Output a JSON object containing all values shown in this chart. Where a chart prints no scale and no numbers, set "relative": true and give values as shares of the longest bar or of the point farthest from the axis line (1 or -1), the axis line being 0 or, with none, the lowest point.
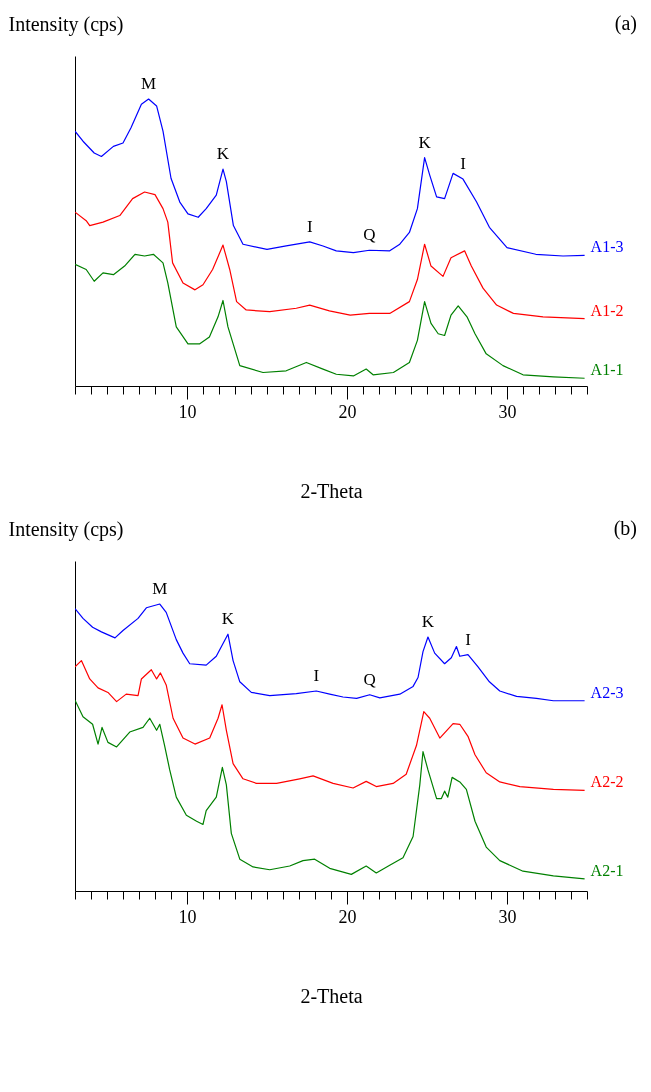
{
  "chart_data": [
    {
      "type": "line",
      "relative": true,
      "xlabel": "2-Theta",
      "ylabel": "Intensity (cps)",
      "xlim": [
        3,
        35
      ],
      "xticks": [
        {
          "value": 3,
          "label": null
        },
        {
          "value": 4,
          "label": null
        },
        {
          "value": 5,
          "label": null
        },
        {
          "value": 6,
          "label": null
        },
        {
          "value": 7,
          "label": null
        },
        {
          "value": 8,
          "label": null
        },
        {
          "value": 9,
          "label": null
        },
        10,
        {
          "value": 11,
          "label": null
        },
        {
          "value": 12,
          "label": null
        },
        {
          "value": 13,
          "label": null
        },
        {
          "value": 14,
          "label": null
        },
        {
          "value": 15,
          "label": null
        },
        {
          "value": 16,
          "label": null
        },
        {
          "value": 17,
          "label": null
        },
        {
          "value": 18,
          "label": null
        },
        {
          "value": 19,
          "label": null
        },
        20,
        {
          "value": 21,
          "label": null
        },
        {
          "value": 22,
          "label": null
        },
        {
          "value": 23,
          "label": null
        },
        {
          "value": 24,
          "label": null
        },
        {
          "value": 25,
          "label": null
        },
        {
          "value": 26,
          "label": null
        },
        {
          "value": 27,
          "label": null
        },
        {
          "value": 28,
          "label": null
        },
        {
          "value": 29,
          "label": null
        },
        30,
        {
          "value": 31,
          "label": null
        },
        {
          "value": 32,
          "label": null
        },
        {
          "value": 33,
          "label": null
        },
        {
          "value": 34,
          "label": null
        },
        {
          "value": 35,
          "label": null
        }
      ],
      "annotations": [
        "(a)",
        {
          "text": "M",
          "x": 7.6,
          "y": 1
        },
        {
          "text": "K",
          "x": 12.25,
          "y": 0.756
        },
        {
          "text": "I",
          "x": 17.67,
          "y": 0.502
        },
        {
          "text": "Q",
          "x": 21.4,
          "y": 0.473
        },
        {
          "text": "K",
          "x": 24.85,
          "y": 0.796
        },
        {
          "text": "I",
          "x": 27.25,
          "y": 0.721
        }
      ],
      "series": [
        {
          "name": "A1-3",
          "color": "#0000ff",
          "x": [
            3.0,
            3.5,
            4.2,
            4.65,
            5.4,
            6.0,
            6.5,
            7.15,
            7.6,
            8.1,
            8.5,
            9.0,
            9.55,
            10.06,
            10.7,
            11.2,
            11.83,
            12.25,
            12.46,
            12.9,
            13.5,
            15.0,
            16.2,
            17.67,
            18.5,
            19.33,
            20.4,
            21.4,
            22.67,
            23.3,
            23.9,
            24.4,
            24.85,
            25.17,
            25.6,
            26.1,
            26.63,
            27.25,
            28.1,
            28.9,
            30.0,
            31.8,
            33.5,
            34.85
          ],
          "values": [
            0.888,
            0.853,
            0.812,
            0.8,
            0.835,
            0.847,
            0.9,
            0.982,
            1,
            0.976,
            0.888,
            0.724,
            0.641,
            0.6,
            0.588,
            0.618,
            0.665,
            0.756,
            0.712,
            0.559,
            0.494,
            0.476,
            0.488,
            0.502,
            0.488,
            0.471,
            0.465,
            0.473,
            0.471,
            0.494,
            0.535,
            0.618,
            0.796,
            0.735,
            0.659,
            0.653,
            0.741,
            0.721,
            0.641,
            0.553,
            0.482,
            0.459,
            0.453,
            0.455
          ]
        },
        {
          "name": "A1-2",
          "color": "#ff0000",
          "x": [
            3.0,
            3.7,
            3.92,
            4.75,
            5.8,
            6.6,
            7.35,
            8.0,
            8.5,
            8.8,
            9.1,
            9.75,
            10.5,
            11.0,
            11.6,
            12.25,
            12.67,
            13.1,
            13.7,
            15.17,
            16.83,
            17.67,
            18.9,
            20.2,
            21.4,
            22.67,
            23.9,
            24.4,
            24.85,
            25.25,
            26.0,
            26.5,
            27.35,
            27.77,
            28.5,
            29.35,
            30.4,
            32.25,
            34.85
          ],
          "values": [
            0.606,
            0.576,
            0.559,
            0.571,
            0.594,
            0.653,
            0.676,
            0.667,
            0.618,
            0.571,
            0.429,
            0.359,
            0.335,
            0.353,
            0.406,
            0.491,
            0.406,
            0.294,
            0.265,
            0.259,
            0.271,
            0.282,
            0.262,
            0.247,
            0.253,
            0.253,
            0.294,
            0.371,
            0.494,
            0.418,
            0.382,
            0.447,
            0.471,
            0.418,
            0.341,
            0.282,
            0.253,
            0.241,
            0.235
          ]
        },
        {
          "name": "A1-1",
          "color": "#008000",
          "x": [
            3.0,
            3.7,
            4.2,
            4.75,
            5.4,
            6.1,
            6.75,
            7.35,
            7.9,
            8.5,
            8.8,
            9.33,
            10.06,
            10.8,
            11.4,
            11.94,
            12.25,
            12.56,
            13.3,
            14.75,
            16.2,
            17.46,
            18.5,
            19.33,
            20.4,
            21.2,
            21.63,
            22.9,
            23.9,
            24.4,
            24.85,
            25.25,
            25.7,
            26.1,
            26.5,
            26.95,
            27.5,
            28.0,
            28.7,
            29.75,
            31.0,
            32.9,
            34.85
          ],
          "values": [
            0.424,
            0.406,
            0.365,
            0.394,
            0.388,
            0.418,
            0.459,
            0.453,
            0.459,
            0.429,
            0.359,
            0.206,
            0.147,
            0.147,
            0.171,
            0.241,
            0.298,
            0.206,
            0.071,
            0.047,
            0.053,
            0.082,
            0.059,
            0.041,
            0.035,
            0.059,
            0.039,
            0.047,
            0.082,
            0.159,
            0.294,
            0.218,
            0.182,
            0.176,
            0.247,
            0.279,
            0.241,
            0.182,
            0.112,
            0.071,
            0.039,
            0.032,
            0.027
          ]
        }
      ]
    },
    {
      "type": "line",
      "relative": true,
      "xlabel": "2-Theta",
      "ylabel": "Intensity (cps)",
      "xlim": [
        3,
        35
      ],
      "xticks": [
        {
          "value": 3,
          "label": null
        },
        {
          "value": 4,
          "label": null
        },
        {
          "value": 5,
          "label": null
        },
        {
          "value": 6,
          "label": null
        },
        {
          "value": 7,
          "label": null
        },
        {
          "value": 8,
          "label": null
        },
        {
          "value": 9,
          "label": null
        },
        10,
        {
          "value": 11,
          "label": null
        },
        {
          "value": 12,
          "label": null
        },
        {
          "value": 13,
          "label": null
        },
        {
          "value": 14,
          "label": null
        },
        {
          "value": 15,
          "label": null
        },
        {
          "value": 16,
          "label": null
        },
        {
          "value": 17,
          "label": null
        },
        {
          "value": 18,
          "label": null
        },
        {
          "value": 19,
          "label": null
        },
        20,
        {
          "value": 21,
          "label": null
        },
        {
          "value": 22,
          "label": null
        },
        {
          "value": 23,
          "label": null
        },
        {
          "value": 24,
          "label": null
        },
        {
          "value": 25,
          "label": null
        },
        {
          "value": 26,
          "label": null
        },
        {
          "value": 27,
          "label": null
        },
        {
          "value": 28,
          "label": null
        },
        {
          "value": 29,
          "label": null
        },
        30,
        {
          "value": 31,
          "label": null
        },
        {
          "value": 32,
          "label": null
        },
        {
          "value": 33,
          "label": null
        },
        {
          "value": 34,
          "label": null
        },
        {
          "value": 35,
          "label": null
        }
      ],
      "annotations": [
        "(b)",
        {
          "text": "M",
          "x": 8.3,
          "y": 1
        },
        {
          "text": "K",
          "x": 12.56,
          "y": 0.895
        },
        {
          "text": "I",
          "x": 18.08,
          "y": 0.697
        },
        {
          "text": "Q",
          "x": 21.42,
          "y": 0.684
        },
        {
          "text": "K",
          "x": 25.06,
          "y": 0.885
        },
        {
          "text": "I",
          "x": 27.56,
          "y": 0.824
        }
      ],
      "series": [
        {
          "name": "A2-3",
          "color": "#0000ff",
          "x": [
            3.0,
            3.5,
            4.1,
            4.65,
            5.5,
            6.0,
            6.94,
            7.46,
            8.3,
            8.7,
            9.33,
            9.75,
            10.17,
            11.2,
            11.83,
            12.56,
            12.88,
            13.3,
            14.02,
            15.17,
            16.83,
            18.08,
            18.92,
            19.75,
            20.6,
            21.42,
            22.05,
            23.3,
            24.13,
            24.44,
            24.75,
            25.06,
            25.48,
            26.1,
            26.52,
            26.84,
            27.05,
            27.56,
            28.19,
            28.9,
            29.55,
            30.6,
            31.84,
            32.9,
            34.85
          ],
          "values": [
            0.984,
            0.95,
            0.919,
            0.903,
            0.882,
            0.908,
            0.95,
            0.987,
            1,
            0.971,
            0.876,
            0.829,
            0.792,
            0.787,
            0.818,
            0.895,
            0.803,
            0.729,
            0.692,
            0.681,
            0.688,
            0.697,
            0.686,
            0.676,
            0.671,
            0.684,
            0.673,
            0.686,
            0.713,
            0.744,
            0.834,
            0.885,
            0.829,
            0.792,
            0.813,
            0.852,
            0.818,
            0.824,
            0.781,
            0.729,
            0.697,
            0.678,
            0.671,
            0.663,
            0.663
          ]
        },
        {
          "name": "A2-2",
          "color": "#ff0000",
          "x": [
            3.0,
            3.4,
            3.92,
            4.44,
            5.06,
            5.6,
            6.2,
            6.94,
            7.15,
            7.77,
            8.1,
            8.34,
            8.7,
            9.13,
            9.75,
            10.5,
            11.42,
            11.94,
            12.19,
            12.46,
            12.88,
            13.5,
            14.34,
            15.6,
            17.04,
            17.88,
            19.13,
            20.38,
            21.2,
            21.83,
            22.88,
            23.7,
            24.34,
            24.8,
            25.17,
            25.8,
            26.63,
            27.05,
            27.56,
            28.0,
            28.7,
            29.55,
            30.8,
            32.9,
            34.85
          ],
          "values": [
            0.781,
            0.803,
            0.739,
            0.708,
            0.692,
            0.66,
            0.686,
            0.681,
            0.739,
            0.771,
            0.739,
            0.76,
            0.718,
            0.602,
            0.533,
            0.512,
            0.533,
            0.602,
            0.649,
            0.56,
            0.444,
            0.391,
            0.375,
            0.375,
            0.391,
            0.401,
            0.375,
            0.359,
            0.382,
            0.364,
            0.375,
            0.407,
            0.507,
            0.625,
            0.602,
            0.533,
            0.583,
            0.581,
            0.539,
            0.475,
            0.412,
            0.38,
            0.364,
            0.354,
            0.351
          ]
        },
        {
          "name": "A2-1",
          "color": "#008000",
          "x": [
            3.0,
            3.5,
            4.1,
            4.44,
            4.69,
            5.06,
            5.6,
            6.42,
            7.25,
            7.67,
            8.1,
            8.3,
            8.6,
            8.92,
            9.33,
            9.96,
            10.6,
            11.0,
            11.2,
            11.83,
            12.21,
            12.46,
            12.77,
            13.3,
            14.13,
            15.17,
            16.42,
            17.25,
            17.98,
            18.92,
            20.27,
            21.2,
            21.83,
            22.67,
            23.5,
            24.13,
            24.55,
            24.75,
            25.06,
            25.6,
            25.9,
            26.1,
            26.3,
            26.57,
            27.05,
            27.46,
            28.0,
            28.7,
            29.55,
            31.0,
            32.9,
            34.85
          ],
          "values": [
            0.665,
            0.607,
            0.581,
            0.512,
            0.57,
            0.518,
            0.502,
            0.554,
            0.57,
            0.602,
            0.56,
            0.581,
            0.507,
            0.422,
            0.327,
            0.264,
            0.243,
            0.232,
            0.28,
            0.327,
            0.431,
            0.37,
            0.201,
            0.111,
            0.084,
            0.074,
            0.087,
            0.106,
            0.111,
            0.079,
            0.058,
            0.087,
            0.063,
            0.09,
            0.116,
            0.19,
            0.37,
            0.486,
            0.422,
            0.322,
            0.322,
            0.348,
            0.327,
            0.396,
            0.38,
            0.354,
            0.243,
            0.153,
            0.106,
            0.069,
            0.053,
            0.042
          ]
        }
      ]
    }
  ]
}
